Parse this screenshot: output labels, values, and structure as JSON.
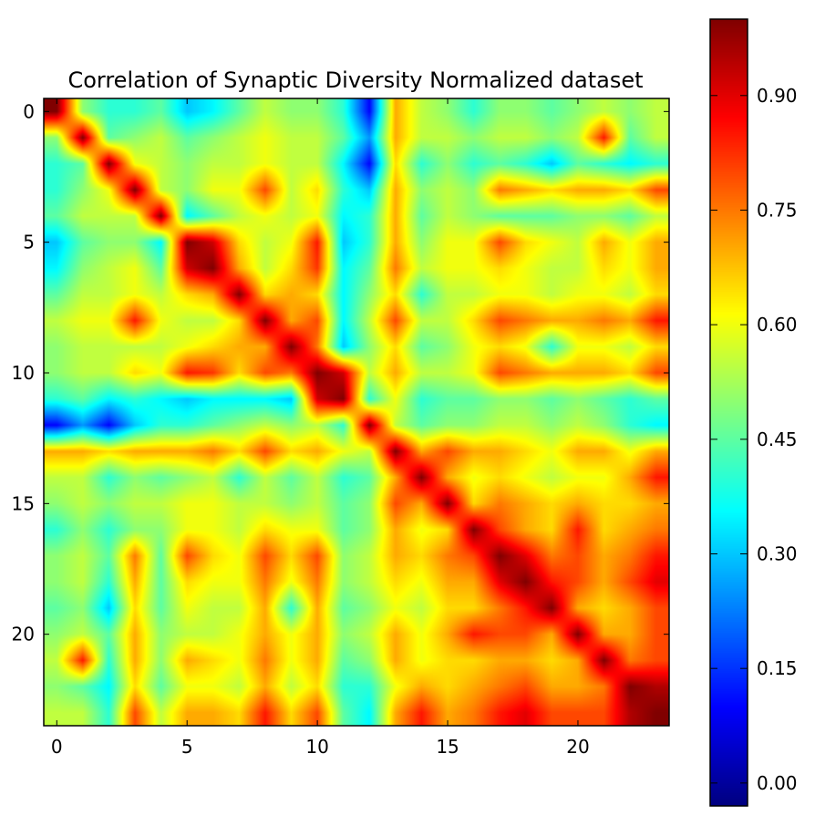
{
  "chart_data": {
    "type": "heatmap",
    "title": "Correlation of Synaptic Diversity Normalized dataset",
    "xlabel": "",
    "ylabel": "",
    "xticks": [
      0,
      5,
      10,
      15,
      20
    ],
    "yticks": [
      0,
      5,
      10,
      15,
      20
    ],
    "xlim": [
      -0.5,
      23.5
    ],
    "ylim": [
      23.5,
      -0.5
    ],
    "colormap": "jet",
    "interpolation": "bilinear",
    "colorbar": {
      "min": -0.03,
      "max": 1.0,
      "ticks": [
        0.0,
        0.15,
        0.3,
        0.45,
        0.6,
        0.75,
        0.9
      ],
      "tick_labels": [
        "0.00",
        "0.15",
        "0.30",
        "0.45",
        "0.60",
        "0.75",
        "0.90"
      ]
    },
    "size": 24,
    "values": [
      [
        1.0,
        0.5,
        0.4,
        0.4,
        0.45,
        0.3,
        0.35,
        0.45,
        0.55,
        0.5,
        0.5,
        0.4,
        0.1,
        0.7,
        0.55,
        0.5,
        0.4,
        0.5,
        0.5,
        0.45,
        0.5,
        0.55,
        0.5,
        0.55
      ],
      [
        0.5,
        1.0,
        0.45,
        0.5,
        0.55,
        0.45,
        0.5,
        0.55,
        0.6,
        0.55,
        0.55,
        0.45,
        0.25,
        0.7,
        0.55,
        0.55,
        0.5,
        0.55,
        0.55,
        0.5,
        0.55,
        0.85,
        0.45,
        0.55
      ],
      [
        0.4,
        0.45,
        1.0,
        0.6,
        0.55,
        0.5,
        0.55,
        0.55,
        0.6,
        0.55,
        0.55,
        0.35,
        0.1,
        0.65,
        0.4,
        0.5,
        0.4,
        0.45,
        0.4,
        0.3,
        0.45,
        0.4,
        0.35,
        0.4
      ],
      [
        0.4,
        0.5,
        0.6,
        1.0,
        0.55,
        0.5,
        0.6,
        0.6,
        0.8,
        0.55,
        0.65,
        0.4,
        0.3,
        0.7,
        0.5,
        0.55,
        0.5,
        0.75,
        0.7,
        0.65,
        0.7,
        0.7,
        0.65,
        0.8
      ],
      [
        0.45,
        0.55,
        0.55,
        0.55,
        1.0,
        0.35,
        0.45,
        0.55,
        0.6,
        0.55,
        0.6,
        0.35,
        0.4,
        0.7,
        0.45,
        0.55,
        0.5,
        0.45,
        0.45,
        0.45,
        0.5,
        0.5,
        0.45,
        0.55
      ],
      [
        0.3,
        0.45,
        0.5,
        0.5,
        0.35,
        1.0,
        0.92,
        0.65,
        0.55,
        0.6,
        0.85,
        0.3,
        0.4,
        0.7,
        0.5,
        0.6,
        0.6,
        0.8,
        0.65,
        0.6,
        0.55,
        0.7,
        0.6,
        0.7
      ],
      [
        0.35,
        0.5,
        0.55,
        0.6,
        0.45,
        0.92,
        1.0,
        0.7,
        0.55,
        0.65,
        0.82,
        0.35,
        0.45,
        0.75,
        0.55,
        0.6,
        0.6,
        0.65,
        0.6,
        0.55,
        0.55,
        0.65,
        0.6,
        0.7
      ],
      [
        0.45,
        0.55,
        0.55,
        0.6,
        0.55,
        0.65,
        0.7,
        1.0,
        0.65,
        0.7,
        0.65,
        0.35,
        0.5,
        0.65,
        0.4,
        0.55,
        0.55,
        0.6,
        0.6,
        0.55,
        0.6,
        0.6,
        0.55,
        0.65
      ],
      [
        0.55,
        0.6,
        0.6,
        0.85,
        0.6,
        0.55,
        0.55,
        0.65,
        1.0,
        0.7,
        0.8,
        0.35,
        0.55,
        0.8,
        0.55,
        0.55,
        0.65,
        0.8,
        0.75,
        0.7,
        0.7,
        0.75,
        0.7,
        0.85
      ],
      [
        0.5,
        0.55,
        0.55,
        0.55,
        0.55,
        0.6,
        0.65,
        0.7,
        0.7,
        1.0,
        0.75,
        0.3,
        0.5,
        0.65,
        0.45,
        0.5,
        0.6,
        0.65,
        0.6,
        0.4,
        0.6,
        0.6,
        0.55,
        0.65
      ],
      [
        0.5,
        0.55,
        0.55,
        0.65,
        0.6,
        0.85,
        0.82,
        0.65,
        0.8,
        0.75,
        1.0,
        0.92,
        0.55,
        0.7,
        0.55,
        0.55,
        0.6,
        0.8,
        0.75,
        0.7,
        0.7,
        0.7,
        0.65,
        0.8
      ],
      [
        0.4,
        0.45,
        0.35,
        0.4,
        0.35,
        0.3,
        0.35,
        0.35,
        0.35,
        0.3,
        0.92,
        1.0,
        0.4,
        0.6,
        0.4,
        0.45,
        0.45,
        0.5,
        0.5,
        0.45,
        0.5,
        0.45,
        0.4,
        0.45
      ],
      [
        0.1,
        0.25,
        0.1,
        0.3,
        0.4,
        0.4,
        0.45,
        0.5,
        0.55,
        0.5,
        0.55,
        0.4,
        1.0,
        0.55,
        0.45,
        0.5,
        0.5,
        0.55,
        0.55,
        0.5,
        0.55,
        0.5,
        0.4,
        0.35
      ],
      [
        0.7,
        0.7,
        0.65,
        0.7,
        0.7,
        0.7,
        0.75,
        0.65,
        0.8,
        0.65,
        0.7,
        0.6,
        0.55,
        1.0,
        0.7,
        0.8,
        0.7,
        0.7,
        0.65,
        0.6,
        0.7,
        0.7,
        0.6,
        0.7
      ],
      [
        0.55,
        0.55,
        0.4,
        0.5,
        0.45,
        0.5,
        0.55,
        0.4,
        0.55,
        0.45,
        0.55,
        0.4,
        0.45,
        0.7,
        1.0,
        0.7,
        0.6,
        0.65,
        0.6,
        0.55,
        0.6,
        0.6,
        0.7,
        0.85
      ],
      [
        0.5,
        0.55,
        0.5,
        0.55,
        0.55,
        0.6,
        0.6,
        0.55,
        0.55,
        0.5,
        0.55,
        0.45,
        0.5,
        0.8,
        0.7,
        1.0,
        0.65,
        0.75,
        0.7,
        0.65,
        0.7,
        0.65,
        0.65,
        0.7
      ],
      [
        0.4,
        0.5,
        0.4,
        0.5,
        0.5,
        0.6,
        0.6,
        0.55,
        0.65,
        0.6,
        0.6,
        0.45,
        0.5,
        0.7,
        0.6,
        0.65,
        1.0,
        0.8,
        0.7,
        0.65,
        0.85,
        0.65,
        0.7,
        0.75
      ],
      [
        0.5,
        0.55,
        0.45,
        0.75,
        0.45,
        0.8,
        0.65,
        0.6,
        0.8,
        0.65,
        0.8,
        0.5,
        0.55,
        0.7,
        0.65,
        0.75,
        0.8,
        1.0,
        0.9,
        0.75,
        0.8,
        0.7,
        0.75,
        0.85
      ],
      [
        0.5,
        0.55,
        0.4,
        0.7,
        0.45,
        0.65,
        0.6,
        0.6,
        0.75,
        0.6,
        0.75,
        0.5,
        0.55,
        0.65,
        0.6,
        0.7,
        0.7,
        0.9,
        1.0,
        0.85,
        0.8,
        0.7,
        0.8,
        0.9
      ],
      [
        0.45,
        0.5,
        0.3,
        0.65,
        0.45,
        0.6,
        0.55,
        0.55,
        0.7,
        0.4,
        0.7,
        0.45,
        0.5,
        0.6,
        0.55,
        0.65,
        0.65,
        0.75,
        0.85,
        1.0,
        0.7,
        0.65,
        0.7,
        0.8
      ],
      [
        0.5,
        0.55,
        0.45,
        0.7,
        0.5,
        0.55,
        0.55,
        0.6,
        0.7,
        0.6,
        0.7,
        0.5,
        0.55,
        0.7,
        0.6,
        0.7,
        0.85,
        0.8,
        0.8,
        0.7,
        1.0,
        0.7,
        0.7,
        0.8
      ],
      [
        0.55,
        0.85,
        0.4,
        0.7,
        0.5,
        0.7,
        0.65,
        0.6,
        0.75,
        0.6,
        0.7,
        0.45,
        0.5,
        0.7,
        0.6,
        0.65,
        0.65,
        0.7,
        0.7,
        0.65,
        0.7,
        1.0,
        0.75,
        0.8
      ],
      [
        0.5,
        0.45,
        0.35,
        0.65,
        0.45,
        0.6,
        0.6,
        0.55,
        0.7,
        0.55,
        0.65,
        0.4,
        0.4,
        0.6,
        0.7,
        0.65,
        0.7,
        0.75,
        0.8,
        0.7,
        0.7,
        0.75,
        1.0,
        0.95
      ],
      [
        0.55,
        0.55,
        0.4,
        0.8,
        0.55,
        0.7,
        0.7,
        0.65,
        0.85,
        0.65,
        0.8,
        0.45,
        0.35,
        0.7,
        0.85,
        0.7,
        0.75,
        0.85,
        0.9,
        0.8,
        0.8,
        0.8,
        0.95,
        1.0
      ]
    ]
  }
}
